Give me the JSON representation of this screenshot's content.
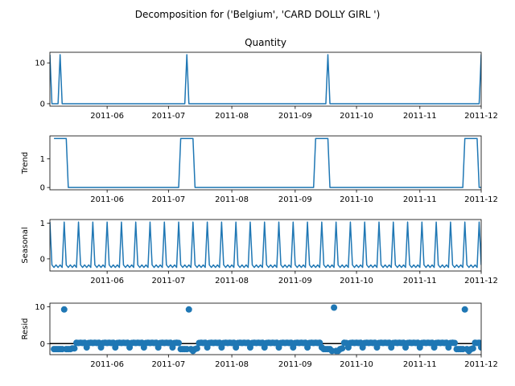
{
  "suptitle": "Decomposition for ('Belgium', 'CARD DOLLY GIRL ')",
  "colors": {
    "series": "#1f77b4",
    "axis": "#000000",
    "background": "#ffffff"
  },
  "chart_data": [
    {
      "type": "line",
      "title": "Quantity",
      "ylabel": "",
      "x_start": "2011-05-04",
      "x_end": "2011-12-01",
      "xticks": [
        "2011-06",
        "2011-07",
        "2011-08",
        "2011-09",
        "2011-10",
        "2011-11",
        "2011-12"
      ],
      "yticks": [
        0,
        10
      ],
      "ylim": [
        -0.6,
        12.6
      ],
      "values": [
        12,
        0,
        0,
        0,
        0,
        12,
        0,
        0,
        0,
        0,
        0,
        0,
        0,
        0,
        0,
        0,
        0,
        0,
        0,
        0,
        0,
        0,
        0,
        0,
        0,
        0,
        0,
        0,
        0,
        0,
        0,
        0,
        0,
        0,
        0,
        0,
        0,
        0,
        0,
        0,
        0,
        0,
        0,
        0,
        0,
        0,
        0,
        0,
        0,
        0,
        0,
        0,
        0,
        0,
        0,
        0,
        0,
        0,
        0,
        0,
        0,
        0,
        0,
        0,
        0,
        0,
        0,
        12,
        0,
        0,
        0,
        0,
        0,
        0,
        0,
        0,
        0,
        0,
        0,
        0,
        0,
        0,
        0,
        0,
        0,
        0,
        0,
        0,
        0,
        0,
        0,
        0,
        0,
        0,
        0,
        0,
        0,
        0,
        0,
        0,
        0,
        0,
        0,
        0,
        0,
        0,
        0,
        0,
        0,
        0,
        0,
        0,
        0,
        0,
        0,
        0,
        0,
        0,
        0,
        0,
        0,
        0,
        0,
        0,
        0,
        0,
        0,
        0,
        0,
        0,
        0,
        0,
        0,
        0,
        0,
        0,
        12,
        0,
        0,
        0,
        0,
        0,
        0,
        0,
        0,
        0,
        0,
        0,
        0,
        0,
        0,
        0,
        0,
        0,
        0,
        0,
        0,
        0,
        0,
        0,
        0,
        0,
        0,
        0,
        0,
        0,
        0,
        0,
        0,
        0,
        0,
        0,
        0,
        0,
        0,
        0,
        0,
        0,
        0,
        0,
        0,
        0,
        0,
        0,
        0,
        0,
        0,
        0,
        0,
        0,
        0,
        0,
        0,
        0,
        0,
        0,
        0,
        0,
        0,
        0,
        0,
        0,
        0,
        0,
        0,
        0,
        0,
        0,
        0,
        0,
        0,
        12,
        0,
        0,
        0,
        0,
        0,
        0,
        0,
        0,
        0,
        12
      ]
    },
    {
      "type": "line",
      "title": "",
      "ylabel": "Trend",
      "x_start": "2011-05-04",
      "x_end": "2011-12-01",
      "xticks": [
        "2011-06",
        "2011-07",
        "2011-08",
        "2011-09",
        "2011-10",
        "2011-11",
        "2011-12"
      ],
      "yticks": [
        0,
        1
      ],
      "ylim": [
        -0.08,
        1.8
      ],
      "values": [
        null,
        null,
        1.71,
        1.71,
        1.71,
        1.71,
        1.71,
        1.71,
        1.71,
        0,
        0,
        0,
        0,
        0,
        0,
        0,
        0,
        0,
        0,
        0,
        0,
        0,
        0,
        0,
        0,
        0,
        0,
        0,
        0,
        0,
        0,
        0,
        0,
        0,
        0,
        0,
        0,
        0,
        0,
        0,
        0,
        0,
        0,
        0,
        0,
        0,
        0,
        0,
        0,
        0,
        0,
        0,
        0,
        0,
        0,
        0,
        0,
        0,
        0,
        0,
        0,
        0,
        0,
        0,
        1.71,
        1.71,
        1.71,
        1.71,
        1.71,
        1.71,
        1.71,
        0,
        0,
        0,
        0,
        0,
        0,
        0,
        0,
        0,
        0,
        0,
        0,
        0,
        0,
        0,
        0,
        0,
        0,
        0,
        0,
        0,
        0,
        0,
        0,
        0,
        0,
        0,
        0,
        0,
        0,
        0,
        0,
        0,
        0,
        0,
        0,
        0,
        0,
        0,
        0,
        0,
        0,
        0,
        0,
        0,
        0,
        0,
        0,
        0,
        0,
        0,
        0,
        0,
        0,
        0,
        0,
        0,
        0,
        0,
        1.71,
        1.71,
        1.71,
        1.71,
        1.71,
        1.71,
        1.71,
        0,
        0,
        0,
        0,
        0,
        0,
        0,
        0,
        0,
        0,
        0,
        0,
        0,
        0,
        0,
        0,
        0,
        0,
        0,
        0,
        0,
        0,
        0,
        0,
        0,
        0,
        0,
        0,
        0,
        0,
        0,
        0,
        0,
        0,
        0,
        0,
        0,
        0,
        0,
        0,
        0,
        0,
        0,
        0,
        0,
        0,
        0,
        0,
        0,
        0,
        0,
        0,
        0,
        0,
        0,
        0,
        0,
        0,
        0,
        0,
        0,
        0,
        0,
        0,
        0,
        0,
        1.71,
        1.71,
        1.71,
        1.71,
        1.71,
        1.71,
        1.71,
        0,
        0,
        0,
        0,
        0,
        1.71,
        null,
        null
      ]
    },
    {
      "type": "line",
      "title": "",
      "ylabel": "Seasonal",
      "x_start": "2011-05-04",
      "x_end": "2011-12-01",
      "xticks": [
        "2011-06",
        "2011-07",
        "2011-08",
        "2011-09",
        "2011-10",
        "2011-11",
        "2011-12"
      ],
      "yticks": [
        0,
        1
      ],
      "ylim": [
        -0.34,
        1.1
      ],
      "period": 7,
      "seasonal_pattern": [
        1.03,
        -0.17,
        -0.24,
        -0.17,
        -0.24,
        -0.17,
        -0.24
      ]
    },
    {
      "type": "scatter",
      "title": "",
      "ylabel": "Resid",
      "x_start": "2011-05-04",
      "x_end": "2011-12-01",
      "xticks": [
        "2011-06",
        "2011-07",
        "2011-08",
        "2011-09",
        "2011-10",
        "2011-11",
        "2011-12"
      ],
      "yticks": [
        0,
        10
      ],
      "ylim": [
        -3,
        11
      ],
      "hline": 0,
      "values": [
        null,
        null,
        -1.5,
        -1.5,
        -1.5,
        -1.5,
        -1.5,
        9.3,
        -1.5,
        -1.5,
        -1.5,
        -1.3,
        -1.3,
        0.24,
        0.17,
        0.24,
        0.17,
        0.24,
        -1.03,
        0.17,
        0.24,
        0.17,
        0.24,
        0.17,
        0.24,
        -1.03,
        0.17,
        0.24,
        0.17,
        0.24,
        0.17,
        0.24,
        -1.03,
        0.17,
        0.24,
        0.17,
        0.24,
        0.17,
        0.24,
        -1.03,
        0.17,
        0.24,
        0.17,
        0.24,
        0.17,
        0.24,
        -1.03,
        0.17,
        0.24,
        0.17,
        0.24,
        0.17,
        0.24,
        -1.03,
        0.17,
        0.24,
        0.17,
        0.24,
        0.17,
        0.24,
        -1.03,
        0.17,
        0.24,
        0.17,
        -1.5,
        -1.5,
        -1.5,
        -1.5,
        9.3,
        -1.5,
        -2.0,
        -1.5,
        -1.3,
        0.17,
        0.24,
        0.17,
        0.24,
        -1.03,
        0.17,
        0.24,
        0.17,
        0.24,
        0.17,
        0.24,
        -1.03,
        0.17,
        0.24,
        0.17,
        0.24,
        0.17,
        0.24,
        -1.03,
        0.17,
        0.24,
        0.17,
        0.24,
        0.17,
        0.24,
        -1.03,
        0.17,
        0.24,
        0.17,
        0.24,
        0.17,
        0.24,
        -1.03,
        0.17,
        0.24,
        0.17,
        0.24,
        0.17,
        0.24,
        -1.03,
        0.17,
        0.24,
        0.17,
        0.24,
        0.17,
        0.24,
        -1.03,
        0.17,
        0.24,
        0.17,
        0.24,
        0.17,
        0.24,
        -1.03,
        0.17,
        0.24,
        0.17,
        0.24,
        0.17,
        0.24,
        -1.03,
        -1.5,
        -1.5,
        -1.5,
        -1.5,
        -2.0,
        9.8,
        -2.0,
        -2.0,
        -1.5,
        -1.3,
        0.24,
        0.17,
        -1.03,
        0.17,
        0.24,
        0.17,
        0.24,
        0.17,
        0.24,
        -1.03,
        0.17,
        0.24,
        0.17,
        0.24,
        0.17,
        0.24,
        -1.03,
        0.17,
        0.24,
        0.17,
        0.24,
        0.17,
        0.24,
        -1.03,
        0.17,
        0.24,
        0.17,
        0.24,
        0.17,
        0.24,
        -1.03,
        0.17,
        0.24,
        0.17,
        0.24,
        0.17,
        0.24,
        -1.03,
        0.17,
        0.24,
        0.17,
        0.24,
        0.17,
        0.24,
        -1.03,
        0.17,
        0.24,
        0.17,
        0.24,
        0.17,
        0.24,
        -1.03,
        0.17,
        0.24,
        0.17,
        -1.5,
        -1.5,
        -1.5,
        -1.5,
        9.3,
        -1.5,
        -2.0,
        -1.5,
        -1.3,
        0.24,
        0.17,
        0.24,
        -1.03,
        0.17,
        0.24,
        -1.5,
        null,
        null
      ]
    }
  ]
}
